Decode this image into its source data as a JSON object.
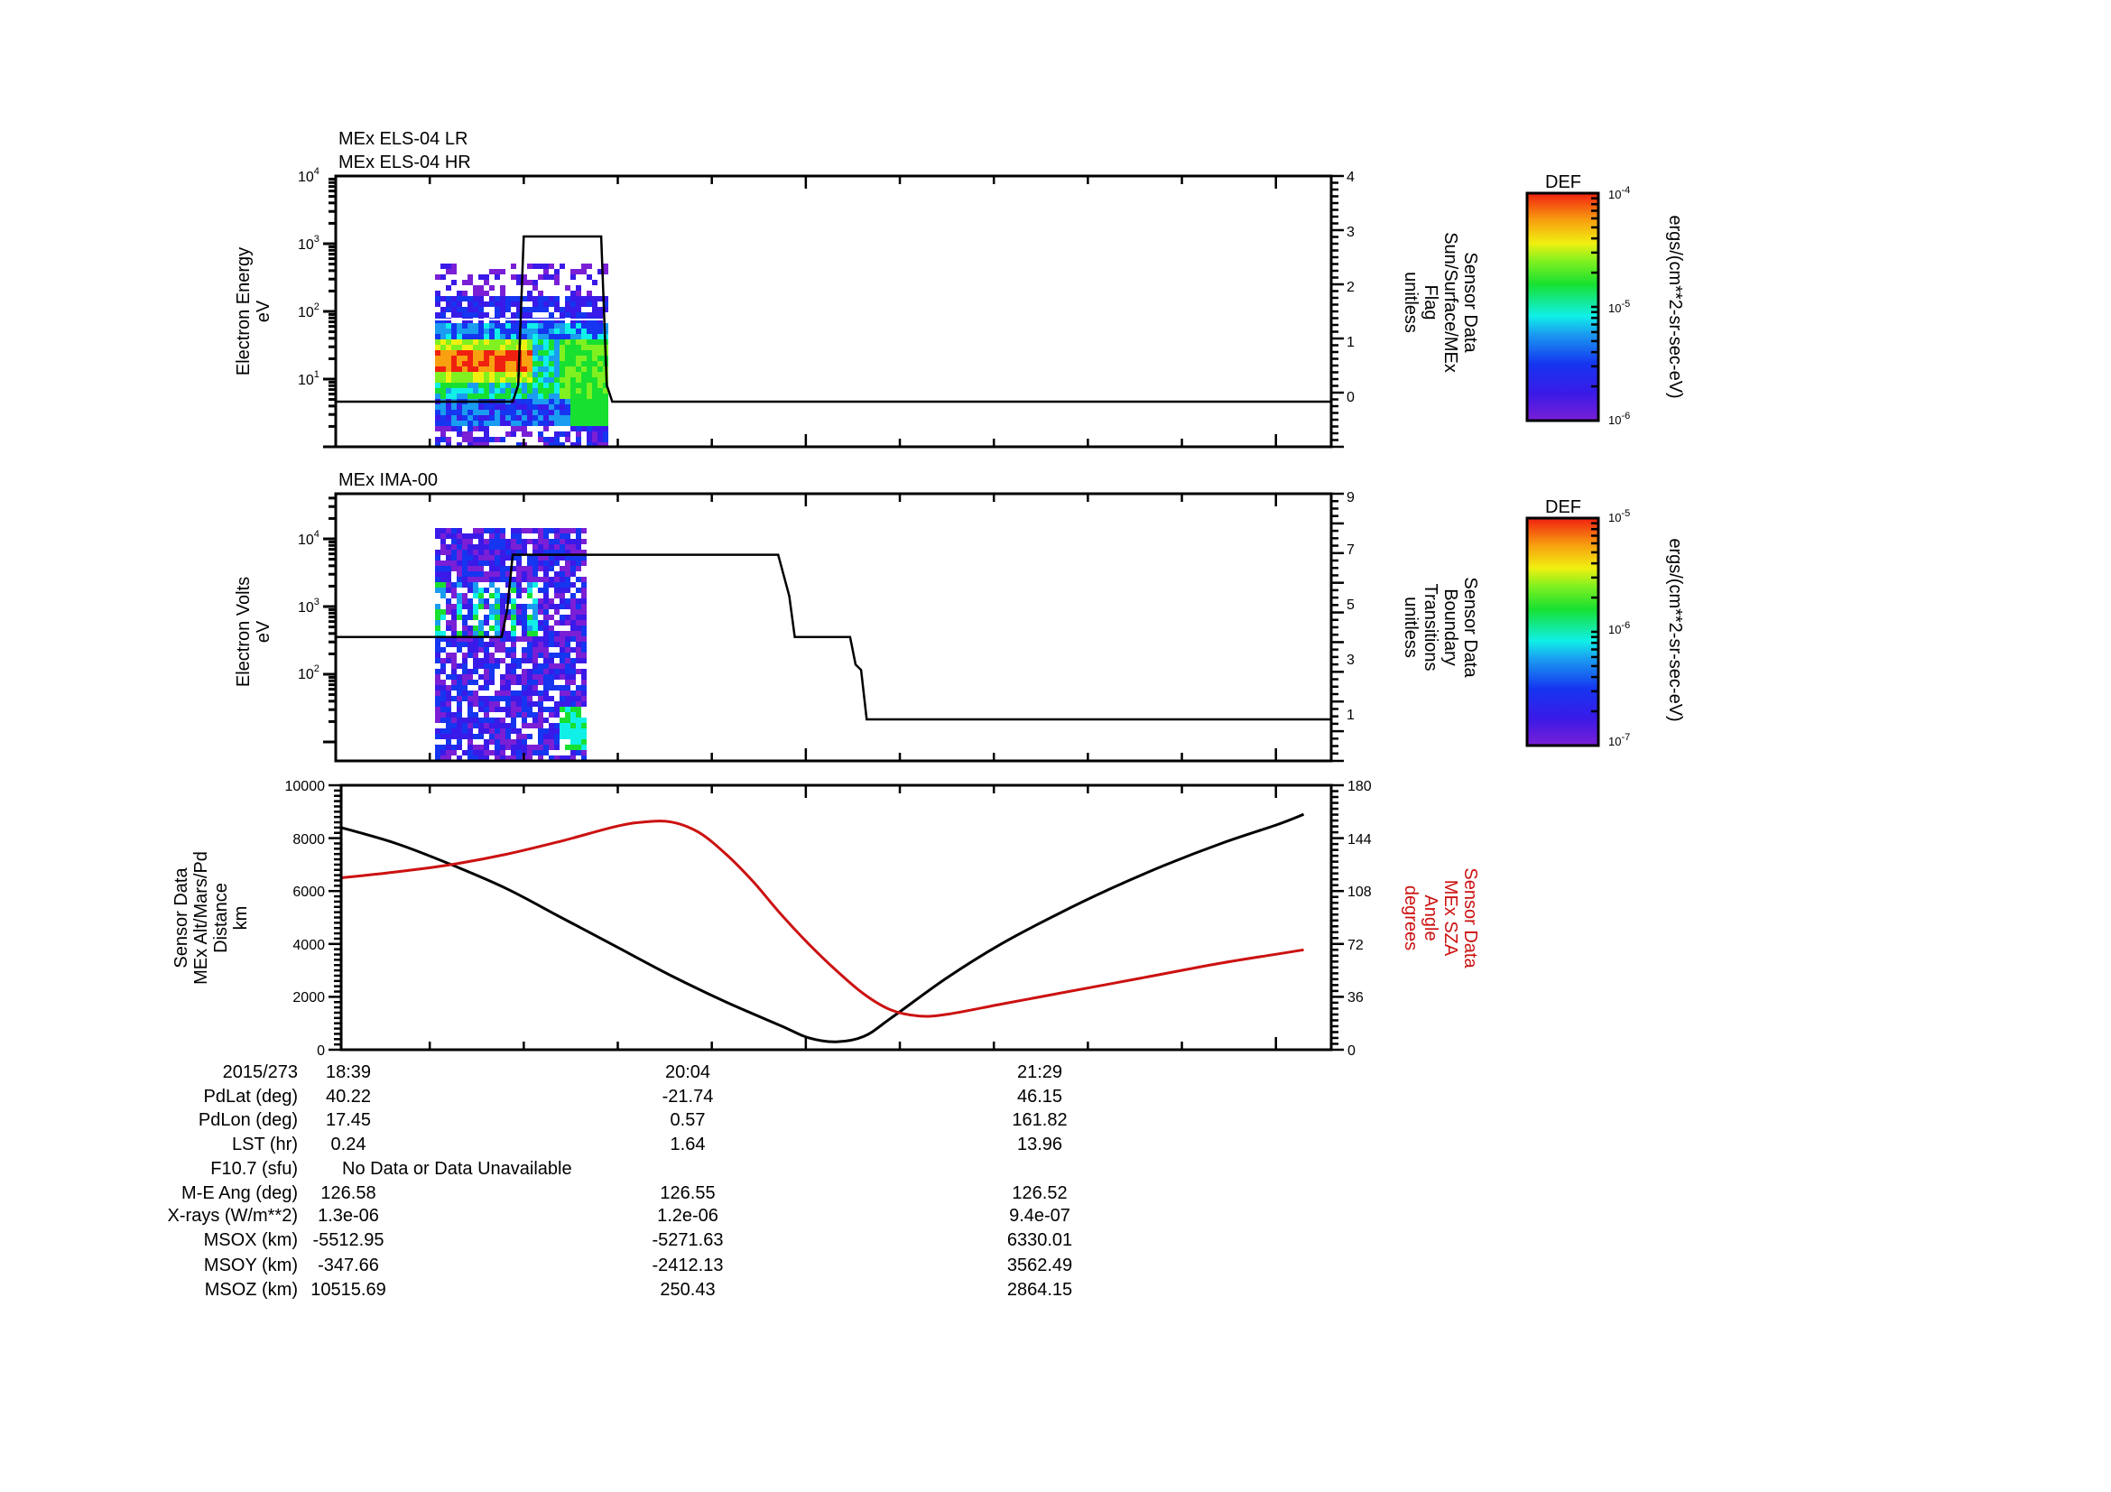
{
  "chart_data": [
    {
      "type": "heatmap",
      "panel": 1,
      "titles": [
        "MEx ELS-04 LR",
        "MEx ELS-04 HR"
      ],
      "ylabel": [
        "Electron Energy",
        "eV"
      ],
      "yscale": "log",
      "ylim": [
        1,
        10000
      ],
      "yticks": [
        "10^1",
        "10^2",
        "10^3",
        "10^4"
      ],
      "y2label": [
        "Sensor Data",
        "Sun/Surface/MEx",
        "Flag",
        "unitless"
      ],
      "y2lim": [
        -0.9,
        4
      ],
      "y2ticks": [
        0,
        1,
        2,
        3,
        4
      ],
      "overlay_line": {
        "name": "Sun/Surface/MEx Flag",
        "x_minutes_from_start": [
          0,
          32,
          33,
          34,
          48,
          49,
          50,
          180
        ],
        "y": [
          0,
          0,
          0.3,
          3,
          3,
          0.3,
          0,
          0
        ]
      },
      "spectrogram_extent": {
        "x_minutes": [
          14,
          38
        ],
        "energy_eV": [
          1.5,
          400
        ]
      },
      "colorbar": {
        "label": "DEF",
        "units": "ergs/(cm**2-sr-sec-eV)",
        "range": [
          "10^-6",
          "10^-4"
        ],
        "ticks": [
          "10^-6",
          "10^-5",
          "10^-4"
        ]
      },
      "features": "Intense red/orange band at ~10-30 eV from ~14 to ~26 min; green diffuse 2-60 eV to ~38 min; sparse purple/blue speckle 100-400 eV"
    },
    {
      "type": "heatmap",
      "panel": 2,
      "titles": [
        "MEx IMA-00"
      ],
      "ylabel": [
        "Electron Volts",
        "eV"
      ],
      "yscale": "log",
      "ylim": [
        10,
        30000
      ],
      "yticks": [
        "10^2",
        "10^3",
        "10^4"
      ],
      "y2label": [
        "Sensor Data",
        "Boundary",
        "Transitions",
        "unitless"
      ],
      "y2lim": [
        -0.2,
        9
      ],
      "y2ticks": [
        1,
        3,
        5,
        7,
        9
      ],
      "overlay_line": {
        "name": "Boundary Transitions",
        "x_minutes_from_start": [
          0,
          30,
          31,
          32,
          80,
          82,
          83,
          93,
          94,
          95,
          96,
          180
        ],
        "y": [
          4,
          4,
          5,
          7,
          7,
          5.5,
          4,
          4,
          3,
          2.8,
          1,
          1
        ]
      },
      "spectrogram_extent": {
        "x_minutes": [
          14,
          34
        ],
        "energy_eV": [
          10,
          15000
        ]
      },
      "colorbar": {
        "label": "DEF",
        "units": "ergs/(cm**2-sr-sec-eV)",
        "range": [
          "10^-7",
          "10^-5"
        ],
        "ticks": [
          "10^-7",
          "10^-6",
          "10^-5"
        ]
      },
      "features": "Mostly blue/purple speckle; cyan-green vertical streaks near 1000 eV at ~16-30 min; green patch near 20-40 eV at ~32-34 min"
    },
    {
      "type": "line",
      "panel": 3,
      "ylabel": [
        "Sensor Data",
        "MEx Alt/Mars/Pd",
        "Distance",
        "km"
      ],
      "ylim": [
        0,
        10000
      ],
      "yticks": [
        0,
        2000,
        4000,
        6000,
        8000,
        10000
      ],
      "y2label": [
        "Sensor Data",
        "MEx SZA",
        "Angle",
        "degrees"
      ],
      "y2lim": [
        0,
        180
      ],
      "y2ticks": [
        0,
        36,
        72,
        108,
        144,
        180
      ],
      "xticks": [
        "18:39",
        "20:04",
        "21:29"
      ],
      "series": [
        {
          "name": "MEx Alt/Mars/Pd Distance (km)",
          "color": "#000000",
          "axis": "left",
          "x_minutes_from_start": [
            0,
            10,
            20,
            30,
            40,
            50,
            60,
            70,
            80,
            85,
            90,
            95,
            100,
            110,
            120,
            130,
            140,
            150,
            160,
            170,
            175
          ],
          "y": [
            8400,
            7800,
            7000,
            6100,
            5000,
            3900,
            2800,
            1800,
            900,
            450,
            300,
            500,
            1200,
            2700,
            4000,
            5100,
            6100,
            7000,
            7800,
            8500,
            8900
          ]
        },
        {
          "name": "MEx SZA Angle (degrees)",
          "color": "#cc1111",
          "axis": "right",
          "x_minutes_from_start": [
            0,
            10,
            20,
            30,
            40,
            50,
            55,
            60,
            65,
            70,
            75,
            80,
            85,
            90,
            95,
            100,
            105,
            110,
            120,
            130,
            140,
            150,
            160,
            170,
            175
          ],
          "y": [
            117,
            121,
            126,
            133,
            142,
            152,
            155,
            155,
            148,
            133,
            114,
            92,
            72,
            54,
            38,
            27,
            23,
            24,
            31,
            38,
            45,
            52,
            59,
            65,
            68
          ]
        }
      ]
    }
  ],
  "panel1": {
    "title1": "MEx ELS-04 LR",
    "title2": "MEx ELS-04 HR",
    "ylabel1": "Electron Energy",
    "ylabel2": "eV",
    "yticks": [
      {
        "base": "10",
        "exp": "4"
      },
      {
        "base": "10",
        "exp": "3"
      },
      {
        "base": "10",
        "exp": "2"
      },
      {
        "base": "10",
        "exp": "1"
      }
    ],
    "y2label": [
      "Sensor Data",
      "Sun/Surface/MEx",
      "Flag",
      "unitless"
    ],
    "y2ticks": [
      "4",
      "3",
      "2",
      "1",
      "0"
    ],
    "colorbar": {
      "title": "DEF",
      "top": {
        "base": "10",
        "exp": "-4"
      },
      "mid": {
        "base": "10",
        "exp": "-5"
      },
      "bot": {
        "base": "10",
        "exp": "-6"
      },
      "units": "ergs/(cm**2-sr-sec-eV)"
    }
  },
  "panel2": {
    "title": "MEx IMA-00",
    "ylabel1": "Electron Volts",
    "ylabel2": "eV",
    "yticks": [
      {
        "base": "10",
        "exp": "4"
      },
      {
        "base": "10",
        "exp": "3"
      },
      {
        "base": "10",
        "exp": "2"
      }
    ],
    "y2label": [
      "Sensor Data",
      "Boundary",
      "Transitions",
      "unitless"
    ],
    "y2ticks": [
      "9",
      "7",
      "5",
      "3",
      "1"
    ],
    "colorbar": {
      "title": "DEF",
      "top": {
        "base": "10",
        "exp": "-5"
      },
      "mid": {
        "base": "10",
        "exp": "-6"
      },
      "bot": {
        "base": "10",
        "exp": "-7"
      },
      "units": "ergs/(cm**2-sr-sec-eV)"
    }
  },
  "panel3": {
    "ylabel": [
      "Sensor Data",
      "MEx Alt/Mars/Pd",
      "Distance",
      "km"
    ],
    "yticks": [
      "10000",
      "8000",
      "6000",
      "4000",
      "2000",
      "0"
    ],
    "y2label": [
      "Sensor Data",
      "MEx SZA",
      "Angle",
      "degrees"
    ],
    "y2ticks": [
      "180",
      "144",
      "108",
      "72",
      "36",
      "0"
    ]
  },
  "ephemeris": {
    "rows": [
      {
        "label": "2015/273",
        "v": [
          "18:39",
          "20:04",
          "21:29"
        ]
      },
      {
        "label": "PdLat (deg)",
        "v": [
          "40.22",
          "-21.74",
          "46.15"
        ]
      },
      {
        "label": "PdLon (deg)",
        "v": [
          "17.45",
          "0.57",
          "161.82"
        ]
      },
      {
        "label": "LST (hr)",
        "v": [
          "0.24",
          "1.64",
          "13.96"
        ]
      },
      {
        "label": "F10.7 (sfu)",
        "note": "No Data or Data Unavailable"
      },
      {
        "label": "M-E Ang (deg)",
        "v": [
          "126.58",
          "126.55",
          "126.52"
        ]
      },
      {
        "label": "X-rays (W/m**2)",
        "v": [
          "1.3e-06",
          "1.2e-06",
          "9.4e-07"
        ]
      },
      {
        "label": "MSOX (km)",
        "v": [
          "-5512.95",
          "-5271.63",
          "6330.01"
        ]
      },
      {
        "label": "MSOY (km)",
        "v": [
          "-347.66",
          "-2412.13",
          "3562.49"
        ]
      },
      {
        "label": "MSOZ (km)",
        "v": [
          "10515.69",
          "250.43",
          "2864.15"
        ]
      }
    ]
  },
  "colors": {
    "line": "#000000",
    "sza": "#cc1111"
  }
}
